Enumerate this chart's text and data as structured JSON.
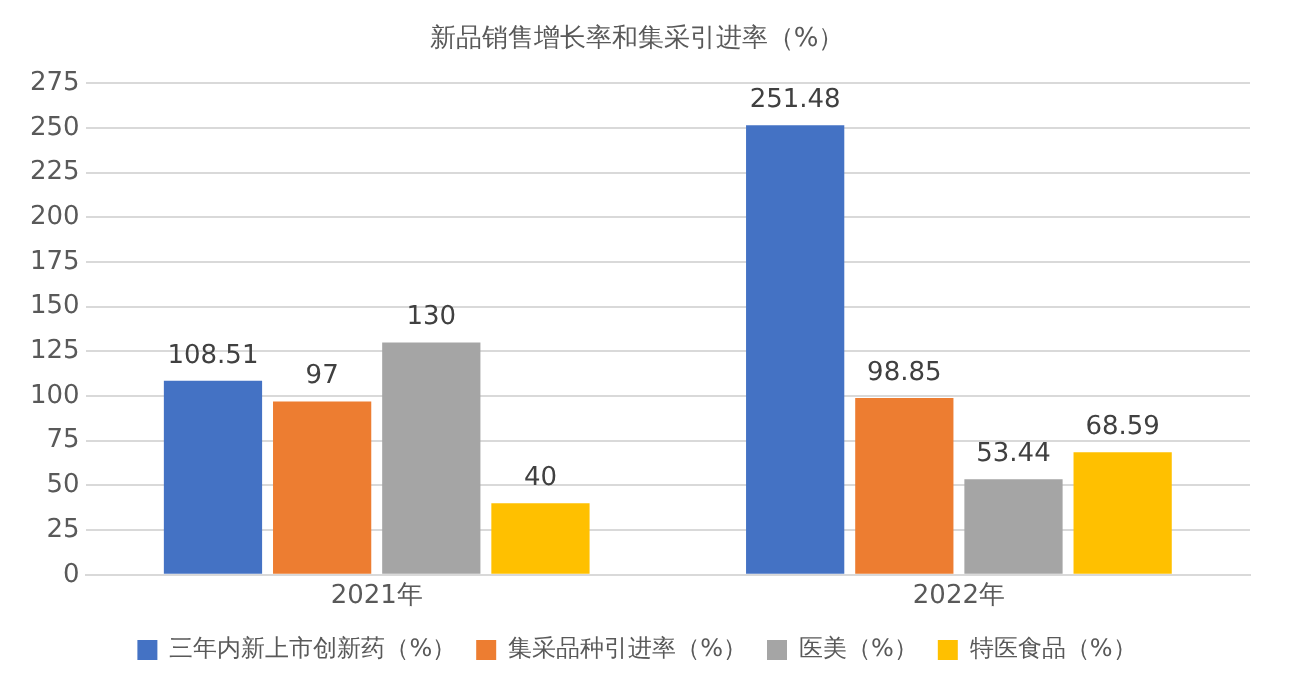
{
  "chart_data": {
    "type": "bar",
    "title": "新品销售增长率和集采引进率（%）",
    "categories": [
      "2021年",
      "2022年"
    ],
    "series": [
      {
        "name": "三年内新上市创新药（%）",
        "color": "#4472c4",
        "values": [
          108.51,
          251.48
        ]
      },
      {
        "name": "集采品种引进率（%）",
        "color": "#ed7d31",
        "values": [
          97,
          98.85
        ]
      },
      {
        "name": "医美（%）",
        "color": "#a5a5a5",
        "values": [
          130,
          53.44
        ]
      },
      {
        "name": "特医食品（%）",
        "color": "#ffc000",
        "values": [
          40,
          68.59
        ]
      }
    ],
    "ylim": [
      0,
      275
    ],
    "yticks": [
      0,
      25,
      50,
      75,
      100,
      125,
      150,
      175,
      200,
      225,
      250,
      275
    ],
    "grid": "y",
    "legend": "bottom",
    "data_labels": true
  }
}
